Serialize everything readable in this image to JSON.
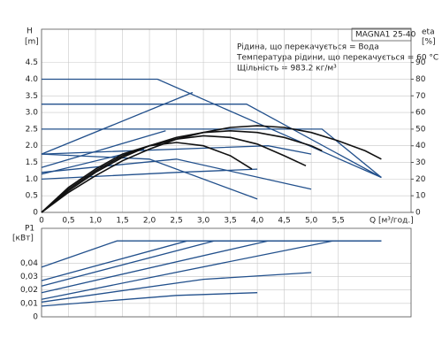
{
  "chart_data": [
    {
      "type": "line",
      "title": "MAGNA1 25-40",
      "notes": [
        "Рідина, що перекачується = Вода",
        "Температура рідини, що перекачується = 60 °C",
        "Щільність = 983.2 кг/м³"
      ],
      "y_label": "H",
      "y_unit": "[m]",
      "y2_label": "eta",
      "y2_unit": "[%]",
      "x_label": "Q [м³/год.]",
      "xlim": [
        0,
        6.85
      ],
      "xticks": [
        0,
        {
          "value": 0.5,
          "label": "0,5"
        },
        {
          "value": 1,
          "label": "1,0"
        },
        {
          "value": 1.5,
          "label": "1,5"
        },
        {
          "value": 2,
          "label": "2,0"
        },
        {
          "value": 2.5,
          "label": "2,5"
        },
        {
          "value": 3,
          "label": "3,0"
        },
        {
          "value": 3.5,
          "label": "3,5"
        },
        {
          "value": 4,
          "label": "4,0"
        },
        {
          "value": 4.5,
          "label": "4,5"
        },
        {
          "value": 5,
          "label": "5,0"
        },
        {
          "value": 5.5,
          "label": "5,5"
        }
      ],
      "ylim": [
        0,
        5.5
      ],
      "yticks": [
        0,
        0.5,
        {
          "value": 1,
          "label": "1.0"
        },
        1.5,
        {
          "value": 2,
          "label": "2.0"
        },
        2.5,
        {
          "value": 3,
          "label": "3.0"
        },
        3.5,
        {
          "value": 4,
          "label": "4.0"
        },
        4.5
      ],
      "y2lim": [
        0,
        110
      ],
      "y2ticks": [
        0,
        10,
        20,
        30,
        40,
        50,
        60,
        70,
        80,
        90
      ],
      "grid": true,
      "series": [
        {
          "color": "#22508c",
          "x": [
            0,
            2.15,
            6.3
          ],
          "values": [
            4.0,
            4.0,
            1.05
          ]
        },
        {
          "color": "#22508c",
          "x": [
            0,
            3.8,
            6.3
          ],
          "values": [
            3.25,
            3.25,
            1.05
          ]
        },
        {
          "color": "#22508c",
          "x": [
            0,
            5.2,
            6.3
          ],
          "values": [
            2.5,
            2.5,
            1.05
          ]
        },
        {
          "color": "#22508c",
          "x": [
            0,
            4.2,
            5.0
          ],
          "values": [
            1.75,
            2.0,
            1.75
          ]
        },
        {
          "color": "#22508c",
          "x": [
            0,
            2.8
          ],
          "values": [
            1.75,
            3.6
          ]
        },
        {
          "color": "#22508c",
          "x": [
            0,
            2.3
          ],
          "values": [
            1.35,
            2.45
          ]
        },
        {
          "color": "#22508c",
          "x": [
            0,
            1.9
          ],
          "values": [
            1.15,
            1.9
          ]
        },
        {
          "color": "#22508c",
          "x": [
            0,
            2.5,
            5.0
          ],
          "values": [
            1.2,
            1.6,
            0.7
          ]
        },
        {
          "color": "#22508c",
          "x": [
            0,
            2.0,
            4.0
          ],
          "values": [
            1.75,
            1.6,
            0.4
          ]
        },
        {
          "color": "#22508c",
          "x": [
            0,
            2.5,
            4.0
          ],
          "values": [
            1.0,
            1.2,
            1.3
          ]
        },
        {
          "color": "#111111",
          "axis": "y2",
          "x": [
            0,
            0.5,
            1,
            1.5,
            2,
            2.5,
            3,
            3.5,
            4,
            4.5,
            5,
            5.5,
            6,
            6.3
          ],
          "values": [
            0,
            12,
            22,
            31,
            38,
            44,
            48,
            51,
            52,
            51,
            48,
            43,
            37,
            32
          ]
        },
        {
          "color": "#111111",
          "axis": "y2",
          "x": [
            0,
            0.5,
            1,
            1.5,
            2,
            2.5,
            3,
            3.5,
            4,
            4.5,
            5,
            5.2
          ],
          "values": [
            0,
            13,
            24,
            33,
            40,
            45,
            48,
            49,
            48,
            45,
            40,
            37
          ]
        },
        {
          "color": "#111111",
          "axis": "y2",
          "x": [
            0,
            0.5,
            1,
            1.5,
            2,
            2.5,
            3,
            3.5,
            4,
            4.5,
            4.9
          ],
          "values": [
            0,
            14,
            25,
            34,
            40,
            44,
            46,
            45,
            41,
            34,
            28
          ]
        },
        {
          "color": "#111111",
          "axis": "y2",
          "x": [
            0,
            0.5,
            1,
            1.5,
            2,
            2.5,
            3,
            3.5,
            3.9
          ],
          "values": [
            0,
            15,
            26,
            35,
            40,
            42,
            40,
            34,
            26
          ]
        }
      ]
    },
    {
      "type": "line",
      "y_label": "P1",
      "y_unit": "[кВт]",
      "xlim": [
        0,
        6.85
      ],
      "ylim": [
        0,
        0.066
      ],
      "yticks": [
        0,
        {
          "value": 0.01,
          "label": "0,01"
        },
        {
          "value": 0.02,
          "label": "0,02"
        },
        {
          "value": 0.03,
          "label": "0,03"
        },
        {
          "value": 0.04,
          "label": "0,04"
        }
      ],
      "grid": true,
      "series": [
        {
          "color": "#22508c",
          "x": [
            0,
            1.4,
            6.3
          ],
          "values": [
            0.037,
            0.0566,
            0.0566
          ]
        },
        {
          "color": "#22508c",
          "x": [
            0,
            2.7,
            6.3
          ],
          "values": [
            0.027,
            0.0566,
            0.0566
          ]
        },
        {
          "color": "#22508c",
          "x": [
            0,
            3.2
          ],
          "values": [
            0.023,
            0.0566
          ]
        },
        {
          "color": "#22508c",
          "x": [
            0,
            4.2
          ],
          "values": [
            0.018,
            0.0566
          ]
        },
        {
          "color": "#22508c",
          "x": [
            0,
            5.4
          ],
          "values": [
            0.013,
            0.0566
          ]
        },
        {
          "color": "#22508c",
          "x": [
            0,
            3.0,
            5.0
          ],
          "values": [
            0.011,
            0.028,
            0.033
          ]
        },
        {
          "color": "#22508c",
          "x": [
            0,
            2.5,
            4.0
          ],
          "values": [
            0.008,
            0.016,
            0.018
          ]
        }
      ]
    }
  ]
}
